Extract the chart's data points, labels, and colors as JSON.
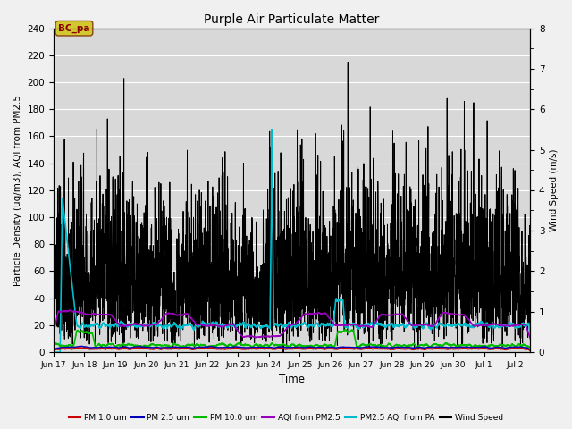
{
  "title": "Purple Air Particulate Matter",
  "ylabel_left": "Particle Density (ug/m3), AQI from PM2.5",
  "ylabel_right": "Wind Speed (m/s)",
  "xlabel": "Time",
  "ylim_left": [
    0,
    240
  ],
  "ylim_right": [
    0.0,
    8.0
  ],
  "yticks_left": [
    0,
    20,
    40,
    60,
    80,
    100,
    120,
    140,
    160,
    180,
    200,
    220,
    240
  ],
  "yticks_right": [
    0.0,
    1.0,
    2.0,
    3.0,
    4.0,
    5.0,
    6.0,
    7.0,
    8.0
  ],
  "annotation_text": "BC_pa",
  "fig_facecolor": "#f0f0f0",
  "ax_facecolor": "#d8d8d8",
  "legend_entries": [
    {
      "label": "PM 1.0 um",
      "color": "#cc0000"
    },
    {
      "label": "PM 2.5 um",
      "color": "#0000bb"
    },
    {
      "label": "PM 10.0 um",
      "color": "#00bb00"
    },
    {
      "label": "AQI from PM2.5",
      "color": "#9900bb"
    },
    {
      "label": "PM2.5 AQI from PA",
      "color": "#00bbcc"
    },
    {
      "label": "Wind Speed",
      "color": "#000000"
    }
  ],
  "x_tick_labels": [
    "Jun 17",
    "Jun 18",
    "Jun 19",
    "Jun 20",
    "Jun 21",
    "Jun 22",
    "Jun 23",
    "Jun 24",
    "Jun 25",
    "Jun 26",
    "Jun 27",
    "Jun 28",
    "Jun 29",
    "Jun 30",
    "Jul 1",
    "Jul 2"
  ],
  "x_tick_positions": [
    0,
    1,
    2,
    3,
    4,
    5,
    6,
    7,
    8,
    9,
    10,
    11,
    12,
    13,
    14,
    15
  ]
}
